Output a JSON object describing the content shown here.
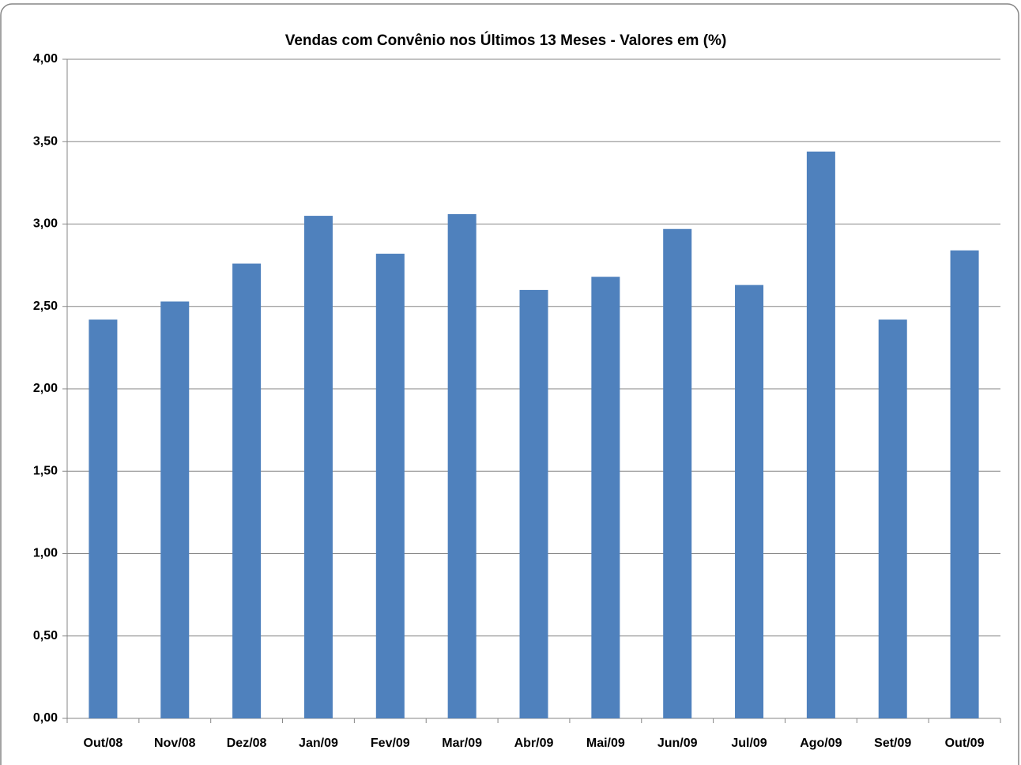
{
  "chart_data": {
    "type": "bar",
    "title": "Vendas com Convênio nos Últimos 13 Meses - Valores em (%)",
    "categories": [
      "Out/08",
      "Nov/08",
      "Dez/08",
      "Jan/09",
      "Fev/09",
      "Mar/09",
      "Abr/09",
      "Mai/09",
      "Jun/09",
      "Jul/09",
      "Ago/09",
      "Set/09",
      "Out/09"
    ],
    "values": [
      2.42,
      2.53,
      2.76,
      3.05,
      2.82,
      3.06,
      2.6,
      2.68,
      2.97,
      2.63,
      3.44,
      2.42,
      2.84
    ],
    "color": "#4f81bd",
    "ylim": [
      0,
      4
    ],
    "yticks": [
      {
        "value": 0,
        "label": "0,00"
      },
      {
        "value": 0.5,
        "label": "0,50"
      },
      {
        "value": 1,
        "label": "1,00"
      },
      {
        "value": 1.5,
        "label": "1,50"
      },
      {
        "value": 2,
        "label": "2,00"
      },
      {
        "value": 2.5,
        "label": "2,50"
      },
      {
        "value": 3,
        "label": "3,00"
      },
      {
        "value": 3.5,
        "label": "3,50"
      },
      {
        "value": 4,
        "label": "4,00"
      }
    ],
    "grid": true
  }
}
